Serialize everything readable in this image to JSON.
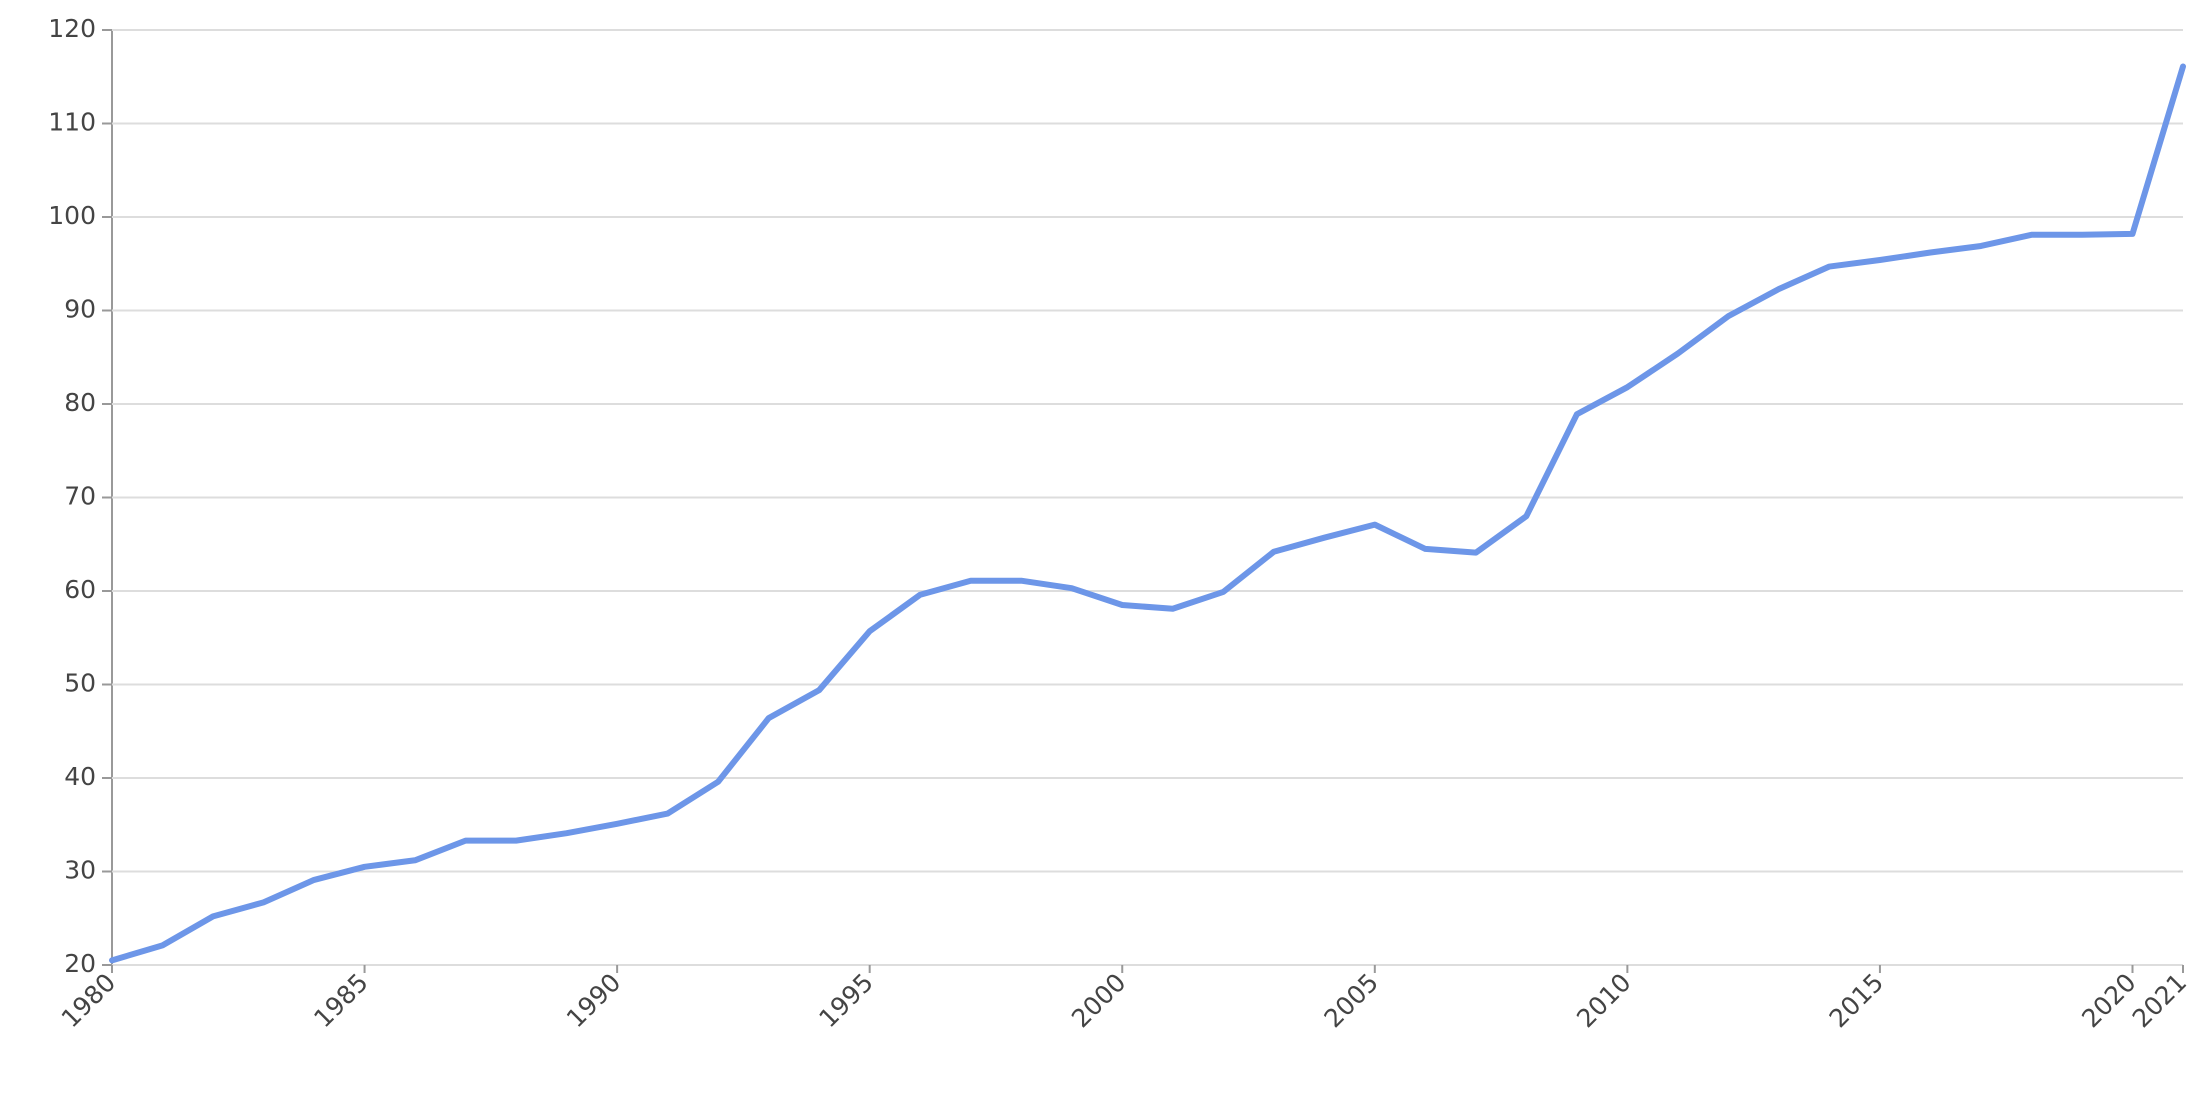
{
  "chart_data": {
    "type": "line",
    "x": [
      1980,
      1981,
      1982,
      1983,
      1984,
      1985,
      1986,
      1987,
      1988,
      1989,
      1990,
      1991,
      1992,
      1993,
      1994,
      1995,
      1996,
      1997,
      1998,
      1999,
      2000,
      2001,
      2002,
      2003,
      2004,
      2005,
      2006,
      2007,
      2008,
      2009,
      2010,
      2011,
      2012,
      2013,
      2014,
      2015,
      2016,
      2017,
      2018,
      2019,
      2020,
      2021
    ],
    "values": [
      20.5,
      22.1,
      25.2,
      26.7,
      29.1,
      30.5,
      31.2,
      33.3,
      33.3,
      34.1,
      35.1,
      36.2,
      39.6,
      46.4,
      49.4,
      55.7,
      59.6,
      61.1,
      61.1,
      60.3,
      58.5,
      58.1,
      59.9,
      64.2,
      65.7,
      67.1,
      64.5,
      64.1,
      68.0,
      78.9,
      81.8,
      85.4,
      89.4,
      92.3,
      94.7,
      95.4,
      96.2,
      96.9,
      98.1,
      98.1,
      98.2,
      116.1
    ],
    "color": "#6d96e8",
    "xlim": [
      1980,
      2021
    ],
    "xticks": [
      1980,
      1985,
      1990,
      1995,
      2000,
      2005,
      2010,
      2015,
      2020,
      2021
    ],
    "ylim": [
      20,
      120
    ],
    "yticks": [
      20,
      30,
      40,
      50,
      60,
      70,
      80,
      90,
      100,
      110,
      120
    ],
    "grid": true
  }
}
